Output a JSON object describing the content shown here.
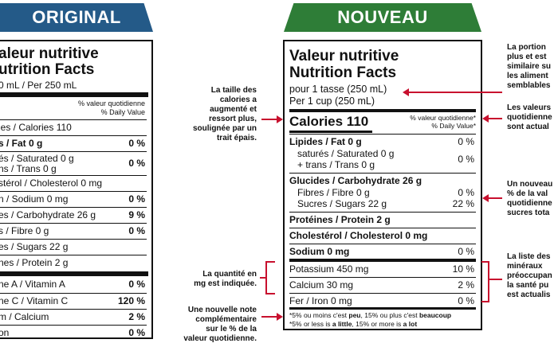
{
  "banners": {
    "original": "ORIGINAL",
    "new": "NOUVEAU"
  },
  "original_label": {
    "title1": "aleur nutritive",
    "title2": "utrition Facts",
    "serving": "0 mL / Per 250 mL",
    "dv_header1": "% valeur quotidienne",
    "dv_header2": "% Daily Value",
    "rows": [
      {
        "label": "ies / Calories 110",
        "value": ""
      },
      {
        "label": "s / Fat 0 g",
        "value": "0 %"
      },
      {
        "label": "és / Saturated 0 g",
        "label2": "ns / Trans 0 g",
        "value": "0 %"
      },
      {
        "label": "stérol / Cholesterol  0 mg",
        "value": ""
      },
      {
        "label": "n / Sodium 0 mg",
        "value": "0 %"
      },
      {
        "label": "es / Carbohydrate 26 g",
        "value": "9 %"
      },
      {
        "label": "s / Fibre 0 g",
        "value": "0 %"
      },
      {
        "label": "es / Sugars 22 g",
        "value": ""
      },
      {
        "label": "nes / Protein 2 g",
        "value": ""
      },
      {
        "label": "ne A / Vitamin A",
        "value": "0 %"
      },
      {
        "label": "ne C / Vitamin C",
        "value": "120 %"
      },
      {
        "label": "m / Calcium",
        "value": "2 %"
      },
      {
        "label": "on",
        "value": "0 %"
      }
    ]
  },
  "new_label": {
    "title1": "Valeur nutritive",
    "title2": "Nutrition Facts",
    "serving1": "pour 1 tasse (250 mL)",
    "serving2": "Per 1 cup (250 mL)",
    "calories": "Calories 110",
    "dv_header1": "% valeur quotidienne*",
    "dv_header2": "% Daily Value*",
    "fat": {
      "label": "Lipides / Fat 0 g",
      "value": "0 %"
    },
    "sat1": "saturés / Saturated 0 g",
    "sat2": "+ trans / Trans 0 g",
    "sat_value": "0 %",
    "carb": "Glucides / Carbohydrate 26 g",
    "fibre": {
      "label": "Fibres / Fibre 0 g",
      "value": "0 %"
    },
    "sugars": {
      "label": "Sucres / Sugars 22 g",
      "value": "22 %"
    },
    "protein": "Protéines / Protein 2 g",
    "cholesterol": "Cholestérol / Cholesterol 0 mg",
    "sodium": {
      "label": "Sodium 0 mg",
      "value": "0 %"
    },
    "potassium": {
      "label": "Potassium 450 mg",
      "value": "10 %"
    },
    "calcium": {
      "label": "Calcium 30 mg",
      "value": "2 %"
    },
    "iron": {
      "label": "Fer / Iron 0 mg",
      "value": "0 %"
    },
    "foot1a": "*5% ou moins c'est ",
    "foot1b": "peu",
    "foot1c": ", 15% ou plus c'est ",
    "foot1d": "beaucoup",
    "foot2a": "*5% or less is ",
    "foot2b": "a little",
    "foot2c": ", 15% or more is ",
    "foot2d": "a lot"
  },
  "annotations": {
    "calories_note": [
      "La taille des",
      "calories a",
      "augmenté et",
      "ressort plus,",
      "soulignée par un",
      "trait épais."
    ],
    "mg_note": [
      "La quantité en",
      "mg est indiquée."
    ],
    "footnote_note": [
      "Une nouvelle note",
      "complémentaire",
      "sur le % de la",
      "valeur quotidienne."
    ],
    "portion_note": [
      "La portion",
      "plus et est",
      "similaire su",
      "les aliment",
      "semblables"
    ],
    "dv_note": [
      "Les valeurs",
      "quotidienne",
      "sont actual"
    ],
    "sugar_note": [
      "Un nouveau",
      "% de la val",
      "quotidienne",
      "sucres tota"
    ],
    "minerals_note": [
      "La liste des",
      "minéraux",
      "préoccupan",
      "la santé pu",
      "est actualis"
    ]
  },
  "colors": {
    "original_banner": "#245a88",
    "new_banner": "#2e7d37",
    "arrow": "#c8102e"
  }
}
